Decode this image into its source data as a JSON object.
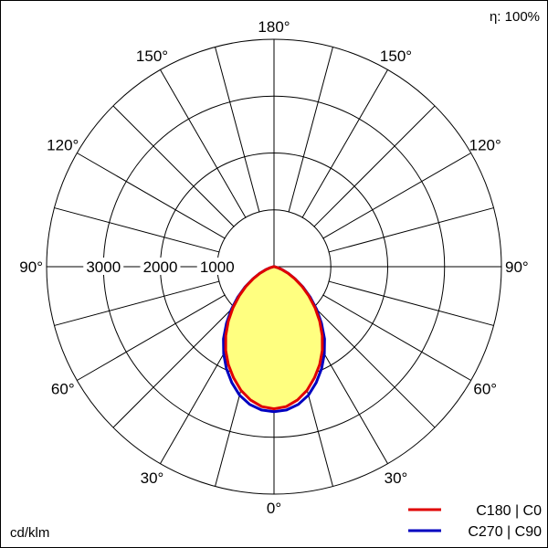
{
  "chart_data": {
    "type": "polar",
    "efficiency_label": "η: 100%",
    "unit_label": "cd/klm",
    "angle_labels_right": [
      "0°",
      "30°",
      "60°",
      "90°",
      "120°",
      "150°",
      "180°"
    ],
    "angle_labels_left": [
      "30°",
      "60°",
      "90°",
      "120°",
      "150°"
    ],
    "angle_values_right": [
      0,
      30,
      60,
      90,
      120,
      150,
      180
    ],
    "angle_values_left": [
      30,
      60,
      90,
      120,
      150
    ],
    "radial_ticks": [
      1000,
      2000,
      3000
    ],
    "radial_tick_labels": [
      "1000",
      "2000",
      "3000"
    ],
    "rmax": 4000,
    "fill_color": "#ffff80",
    "series": [
      {
        "name": "C180 | C0",
        "color": "#e00000",
        "angles": [
          0,
          5,
          10,
          15,
          20,
          25,
          30,
          35,
          40,
          45,
          50,
          55,
          60,
          65,
          70,
          75,
          80,
          85,
          90
        ],
        "values": [
          2500,
          2470,
          2380,
          2250,
          2080,
          1900,
          1700,
          1480,
          1250,
          1020,
          800,
          600,
          420,
          270,
          150,
          70,
          25,
          8,
          0
        ]
      },
      {
        "name": "C270 | C90",
        "color": "#0000c0",
        "angles": [
          0,
          5,
          10,
          15,
          20,
          25,
          30,
          35,
          40,
          45,
          50,
          55,
          60,
          65,
          70,
          75,
          80,
          85,
          90
        ],
        "values": [
          2550,
          2530,
          2460,
          2340,
          2170,
          1980,
          1770,
          1550,
          1300,
          1060,
          830,
          620,
          430,
          280,
          155,
          70,
          25,
          8,
          0
        ]
      }
    ]
  }
}
